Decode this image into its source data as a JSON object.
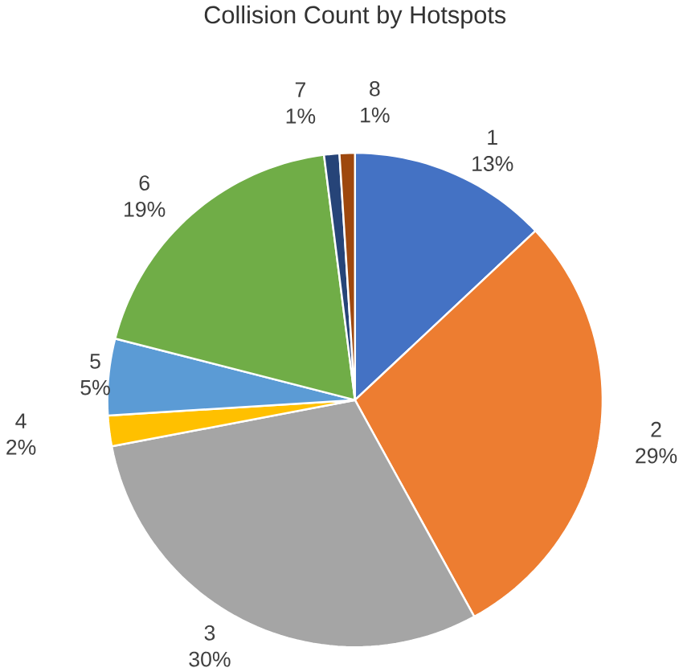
{
  "chart_data": {
    "type": "pie",
    "title": "Collision Count by Hotspots",
    "categories": [
      "1",
      "2",
      "3",
      "4",
      "5",
      "6",
      "7",
      "8"
    ],
    "values": [
      13,
      29,
      30,
      2,
      5,
      19,
      1,
      1
    ],
    "value_labels": [
      "13%",
      "29%",
      "30%",
      "2%",
      "5%",
      "19%",
      "1%",
      "1%"
    ],
    "colors": [
      "#4472c4",
      "#ed7d31",
      "#a5a5a5",
      "#ffc000",
      "#5b9bd5",
      "#70ad47",
      "#264478",
      "#9e480e"
    ]
  }
}
